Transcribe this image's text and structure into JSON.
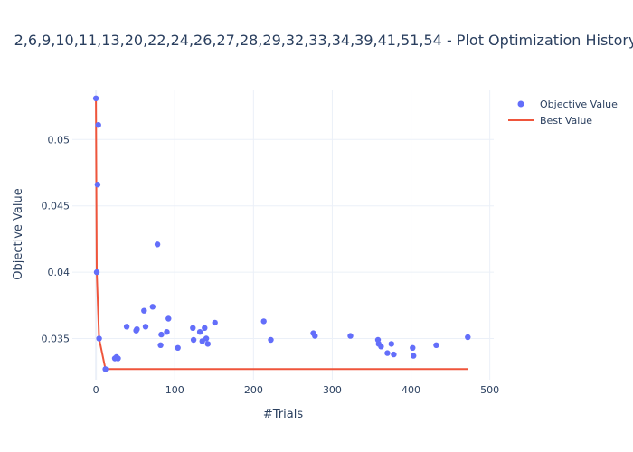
{
  "chart_data": {
    "type": "scatter",
    "title": "2,6,9,10,11,13,20,22,24,26,27,28,29,32,33,34,39,41,51,54 - Plot Optimization History",
    "xlabel": "#Trials",
    "ylabel": "Objective Value",
    "xlim": [
      -30,
      505
    ],
    "ylim": [
      0.0319,
      0.0537
    ],
    "xticks": [
      0,
      100,
      200,
      300,
      400,
      500
    ],
    "yticks": [
      0.035,
      0.04,
      0.045,
      0.05
    ],
    "ytick_labels": [
      "0.035",
      "0.04",
      "0.045",
      "0.05"
    ],
    "grid": true,
    "legend_position": "top-right",
    "series": [
      {
        "name": "Objective Value",
        "mode": "markers",
        "color": "#636efa",
        "points": [
          {
            "x": 0,
            "y": 0.0531
          },
          {
            "x": 1,
            "y": 0.04
          },
          {
            "x": 2,
            "y": 0.0466
          },
          {
            "x": 3,
            "y": 0.0511
          },
          {
            "x": 4,
            "y": 0.035
          },
          {
            "x": 12,
            "y": 0.0327
          },
          {
            "x": 24,
            "y": 0.0335
          },
          {
            "x": 26,
            "y": 0.0336
          },
          {
            "x": 28,
            "y": 0.0335
          },
          {
            "x": 39,
            "y": 0.0359
          },
          {
            "x": 51,
            "y": 0.0356
          },
          {
            "x": 52,
            "y": 0.0357
          },
          {
            "x": 61,
            "y": 0.0371
          },
          {
            "x": 63,
            "y": 0.0359
          },
          {
            "x": 72,
            "y": 0.0374
          },
          {
            "x": 78,
            "y": 0.0421
          },
          {
            "x": 82,
            "y": 0.0345
          },
          {
            "x": 83,
            "y": 0.0353
          },
          {
            "x": 90,
            "y": 0.0355
          },
          {
            "x": 92,
            "y": 0.0365
          },
          {
            "x": 104,
            "y": 0.0343
          },
          {
            "x": 123,
            "y": 0.0358
          },
          {
            "x": 124,
            "y": 0.0349
          },
          {
            "x": 132,
            "y": 0.0355
          },
          {
            "x": 135,
            "y": 0.0348
          },
          {
            "x": 138,
            "y": 0.0358
          },
          {
            "x": 140,
            "y": 0.035
          },
          {
            "x": 142,
            "y": 0.0346
          },
          {
            "x": 151,
            "y": 0.0362
          },
          {
            "x": 213,
            "y": 0.0363
          },
          {
            "x": 222,
            "y": 0.0349
          },
          {
            "x": 276,
            "y": 0.0354
          },
          {
            "x": 278,
            "y": 0.0352
          },
          {
            "x": 323,
            "y": 0.0352
          },
          {
            "x": 358,
            "y": 0.0349
          },
          {
            "x": 359,
            "y": 0.0346
          },
          {
            "x": 362,
            "y": 0.0344
          },
          {
            "x": 370,
            "y": 0.0339
          },
          {
            "x": 375,
            "y": 0.0346
          },
          {
            "x": 378,
            "y": 0.0338
          },
          {
            "x": 402,
            "y": 0.0343
          },
          {
            "x": 403,
            "y": 0.0337
          },
          {
            "x": 432,
            "y": 0.0345
          },
          {
            "x": 472,
            "y": 0.0351
          }
        ]
      },
      {
        "name": "Best Value",
        "mode": "line",
        "color": "#ef553b",
        "points": [
          {
            "x": 0,
            "y": 0.0531
          },
          {
            "x": 1,
            "y": 0.04
          },
          {
            "x": 4,
            "y": 0.035
          },
          {
            "x": 12,
            "y": 0.0327
          },
          {
            "x": 472,
            "y": 0.0327
          }
        ]
      }
    ]
  }
}
